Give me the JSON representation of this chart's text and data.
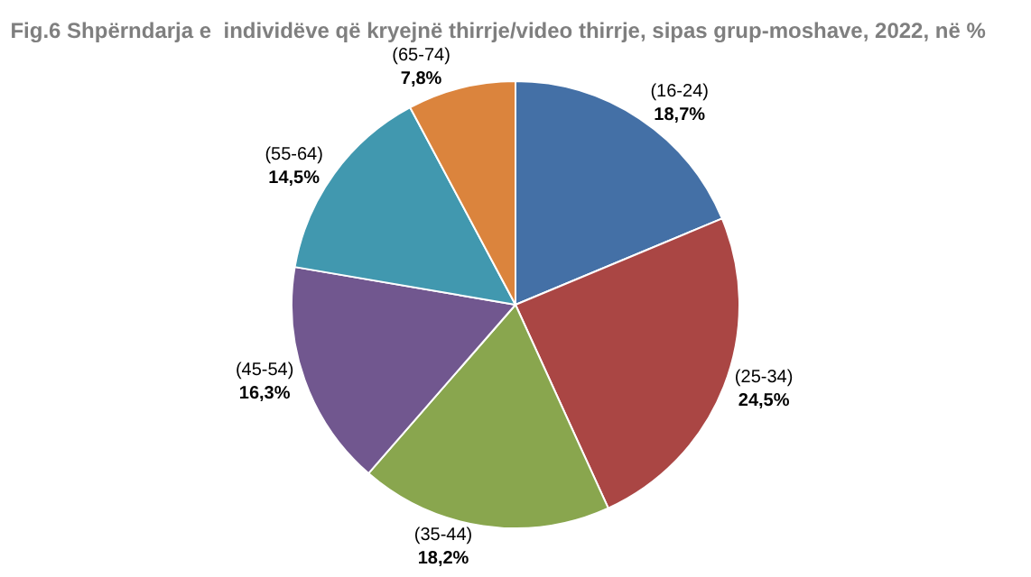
{
  "chart_data": {
    "type": "pie",
    "title": "Fig.6 Shpërndarja e  individëve që kryejnë thirrje/video thirrje, sipas grup-moshave, 2022, në %",
    "categories": [
      "(16-24)",
      "(25-34)",
      "(35-44)",
      "(45-54)",
      "(55-64)",
      "(65-74)"
    ],
    "values": [
      18.7,
      24.5,
      18.2,
      16.3,
      14.5,
      7.8
    ],
    "value_labels": [
      "18,7%",
      "24,5%",
      "18,2%",
      "16,3%",
      "14,5%",
      "7,8%"
    ],
    "colors": [
      "#4470a6",
      "#aa4644",
      "#89a64e",
      "#71578f",
      "#4198af",
      "#db843d"
    ]
  }
}
